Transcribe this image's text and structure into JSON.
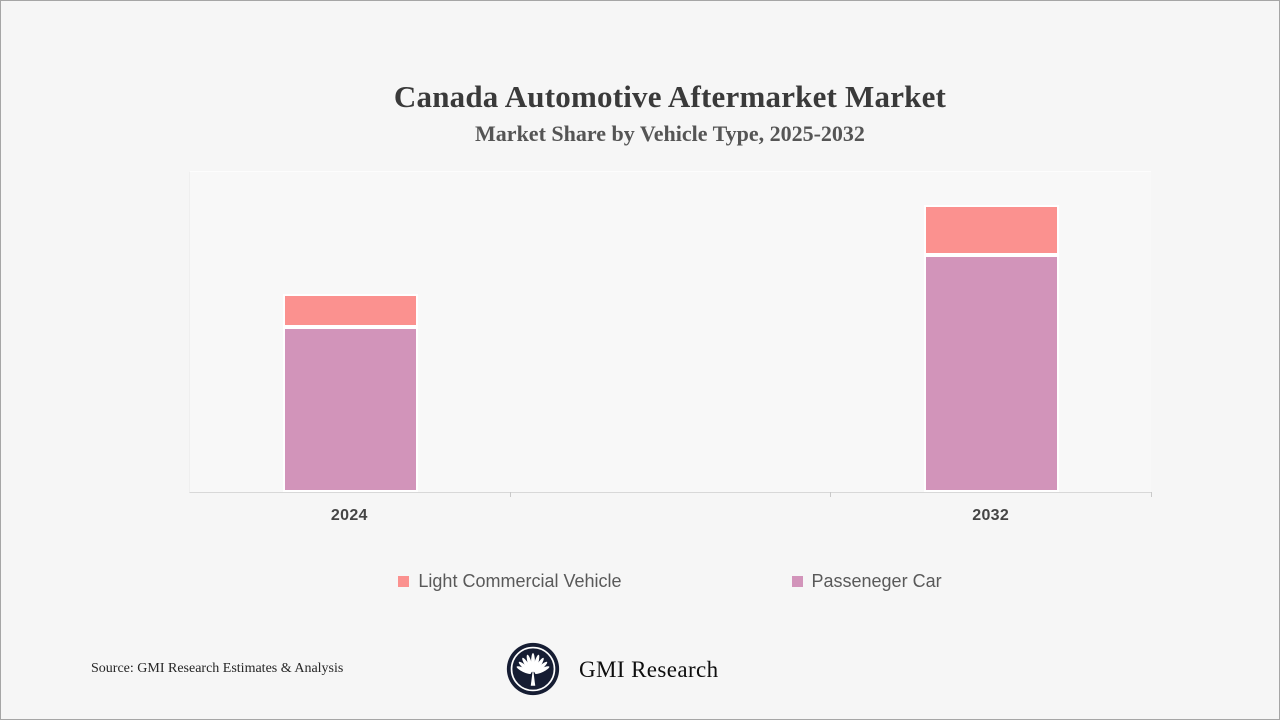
{
  "header": {
    "title": "Canada Automotive Aftermarket Market",
    "subtitle": "Market Share by Vehicle Type, 2025-2032"
  },
  "chart_data": {
    "type": "bar",
    "stacked": true,
    "title": "Canada Automotive Aftermarket Market",
    "subtitle": "Market Share by Vehicle Type, 2025-2032",
    "categories": [
      "2024",
      "2032"
    ],
    "category_slots": 3,
    "slot_indices": [
      0,
      2
    ],
    "series": [
      {
        "name": "Passeneger Car",
        "color": "#D294BA",
        "values": [
          51.2,
          73.6
        ]
      },
      {
        "name": "Light Commercial Vehicle",
        "color": "#FB918F",
        "values": [
          10.2,
          15.5
        ]
      }
    ],
    "xlabel": "",
    "ylabel": "",
    "ylim": [
      0,
      100
    ],
    "y_axis_labels_visible": false,
    "gridlines": false,
    "legend_position": "bottom",
    "note": "Y axis unlabeled in source image; values estimated from bar heights on a relative 0-100 scale"
  },
  "legend": {
    "items": [
      {
        "label": "Light Commercial Vehicle",
        "color": "#FB918F"
      },
      {
        "label": "Passeneger Car",
        "color": "#D294BA"
      }
    ]
  },
  "footer": {
    "source": "Source: GMI Research Estimates & Analysis",
    "brand": "GMI Research",
    "logo_color": "#161D33"
  }
}
